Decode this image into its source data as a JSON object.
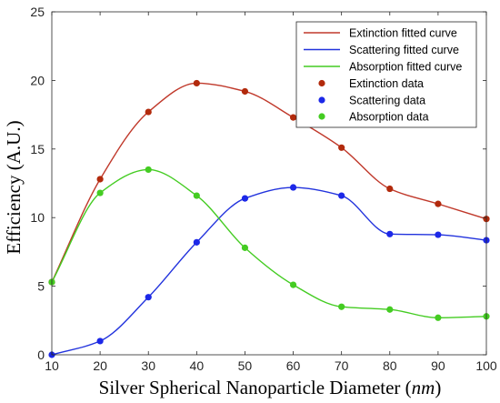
{
  "chart_data": {
    "type": "line",
    "title": "",
    "xlabel": "Silver Spherical Nanoparticle Diameter (nm)",
    "xlabel_main": "Silver Spherical Nanoparticle Diameter (",
    "xlabel_unit": "nm",
    "xlabel_close": ")",
    "ylabel": "Efficiency (A.U.)",
    "xlim": [
      10,
      100
    ],
    "ylim": [
      0,
      25
    ],
    "xticks": [
      10,
      20,
      30,
      40,
      50,
      60,
      70,
      80,
      90,
      100
    ],
    "yticks": [
      0,
      5,
      10,
      15,
      20,
      25
    ],
    "grid": false,
    "legend_position": "top-right",
    "x": [
      10,
      20,
      30,
      40,
      50,
      60,
      70,
      80,
      90,
      100
    ],
    "series": [
      {
        "name": "Extinction",
        "fit_label": "Extinction fitted curve",
        "data_label": "Extinction data",
        "color": "#b22a0c",
        "line_color": "#c0392b",
        "values": [
          5.3,
          12.8,
          17.7,
          19.8,
          19.2,
          17.3,
          15.1,
          12.1,
          11.0,
          9.9
        ]
      },
      {
        "name": "Scattering",
        "fit_label": "Scattering fitted curve",
        "data_label": "Scattering data",
        "color": "#1c28e8",
        "line_color": "#2233dd",
        "values": [
          0.0,
          1.0,
          4.2,
          8.2,
          11.4,
          12.2,
          11.6,
          8.8,
          8.75,
          8.35
        ]
      },
      {
        "name": "Absorption",
        "fit_label": "Absorption fitted curve",
        "data_label": "Absorption data",
        "color": "#44cc22",
        "line_color": "#44cc22",
        "values": [
          5.3,
          11.8,
          13.5,
          11.6,
          7.8,
          5.1,
          3.5,
          3.3,
          2.7,
          2.8
        ]
      }
    ]
  }
}
